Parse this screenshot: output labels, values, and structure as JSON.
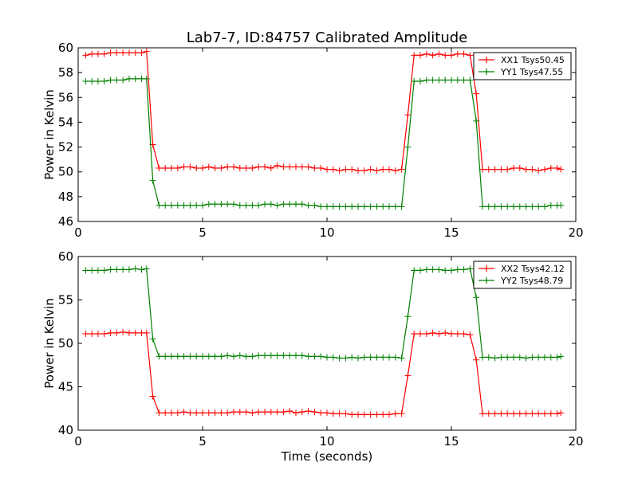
{
  "title": "Lab7-7, ID:84757 Calibrated Amplitude",
  "colors": {
    "red": "#ff0000",
    "green": "#008000"
  },
  "chart_data": [
    {
      "type": "line",
      "title": "Lab7-7, ID:84757 Calibrated Amplitude",
      "xlabel": "",
      "ylabel": "Power in Kelvin",
      "xlim": [
        0,
        20
      ],
      "ylim": [
        46,
        60
      ],
      "xticks": [
        0,
        5,
        10,
        15,
        20
      ],
      "yticks": [
        46,
        48,
        50,
        52,
        54,
        56,
        58,
        60
      ],
      "legend": "top-right",
      "x": [
        0.3,
        0.55,
        0.8,
        1.05,
        1.3,
        1.55,
        1.8,
        2.05,
        2.3,
        2.55,
        2.75,
        3.0,
        3.25,
        3.5,
        3.75,
        4.0,
        4.25,
        4.5,
        4.75,
        5.0,
        5.25,
        5.5,
        5.75,
        6.0,
        6.25,
        6.5,
        6.75,
        7.0,
        7.25,
        7.5,
        7.75,
        8.0,
        8.25,
        8.5,
        8.75,
        9.0,
        9.25,
        9.5,
        9.75,
        10.0,
        10.25,
        10.5,
        10.75,
        11.0,
        11.25,
        11.5,
        11.75,
        12.0,
        12.25,
        12.5,
        12.75,
        13.0,
        13.25,
        13.5,
        13.75,
        14.0,
        14.25,
        14.5,
        14.75,
        15.0,
        15.25,
        15.5,
        15.75,
        16.0,
        16.25,
        16.5,
        16.75,
        17.0,
        17.25,
        17.5,
        17.75,
        18.0,
        18.25,
        18.5,
        18.75,
        19.0,
        19.25,
        19.4
      ],
      "series": [
        {
          "name": "XX1 Tsys50.45",
          "color": "#ff0000",
          "values": [
            59.4,
            59.5,
            59.5,
            59.5,
            59.6,
            59.6,
            59.6,
            59.6,
            59.6,
            59.6,
            59.7,
            52.2,
            50.3,
            50.3,
            50.3,
            50.3,
            50.4,
            50.4,
            50.3,
            50.3,
            50.4,
            50.3,
            50.3,
            50.4,
            50.4,
            50.3,
            50.3,
            50.3,
            50.4,
            50.4,
            50.3,
            50.5,
            50.4,
            50.4,
            50.4,
            50.4,
            50.4,
            50.3,
            50.3,
            50.2,
            50.2,
            50.1,
            50.2,
            50.2,
            50.1,
            50.1,
            50.2,
            50.1,
            50.2,
            50.2,
            50.1,
            50.2,
            54.6,
            59.4,
            59.4,
            59.5,
            59.4,
            59.5,
            59.4,
            59.4,
            59.5,
            59.5,
            59.4,
            56.3,
            50.2,
            50.2,
            50.2,
            50.2,
            50.2,
            50.3,
            50.3,
            50.2,
            50.2,
            50.1,
            50.2,
            50.3,
            50.3,
            50.2
          ]
        },
        {
          "name": "YY1 Tsys47.55",
          "color": "#008000",
          "values": [
            57.3,
            57.3,
            57.3,
            57.3,
            57.4,
            57.4,
            57.4,
            57.5,
            57.5,
            57.5,
            57.5,
            49.3,
            47.3,
            47.3,
            47.3,
            47.3,
            47.3,
            47.3,
            47.3,
            47.3,
            47.4,
            47.4,
            47.4,
            47.4,
            47.4,
            47.3,
            47.3,
            47.3,
            47.3,
            47.4,
            47.4,
            47.3,
            47.4,
            47.4,
            47.4,
            47.4,
            47.3,
            47.3,
            47.2,
            47.2,
            47.2,
            47.2,
            47.2,
            47.2,
            47.2,
            47.2,
            47.2,
            47.2,
            47.2,
            47.2,
            47.2,
            47.2,
            52.0,
            57.3,
            57.3,
            57.4,
            57.4,
            57.4,
            57.4,
            57.4,
            57.4,
            57.4,
            57.4,
            54.1,
            47.2,
            47.2,
            47.2,
            47.2,
            47.2,
            47.2,
            47.2,
            47.2,
            47.2,
            47.2,
            47.2,
            47.3,
            47.3,
            47.3
          ]
        }
      ]
    },
    {
      "type": "line",
      "title": "",
      "xlabel": "Time (seconds)",
      "ylabel": "Power in Kelvin",
      "xlim": [
        0,
        20
      ],
      "ylim": [
        40,
        60
      ],
      "xticks": [
        0,
        5,
        10,
        15,
        20
      ],
      "yticks": [
        40,
        45,
        50,
        55,
        60
      ],
      "legend": "top-right",
      "x": [
        0.3,
        0.55,
        0.8,
        1.05,
        1.3,
        1.55,
        1.8,
        2.05,
        2.3,
        2.55,
        2.75,
        3.0,
        3.25,
        3.5,
        3.75,
        4.0,
        4.25,
        4.5,
        4.75,
        5.0,
        5.25,
        5.5,
        5.75,
        6.0,
        6.25,
        6.5,
        6.75,
        7.0,
        7.25,
        7.5,
        7.75,
        8.0,
        8.25,
        8.5,
        8.75,
        9.0,
        9.25,
        9.5,
        9.75,
        10.0,
        10.25,
        10.5,
        10.75,
        11.0,
        11.25,
        11.5,
        11.75,
        12.0,
        12.25,
        12.5,
        12.75,
        13.0,
        13.25,
        13.5,
        13.75,
        14.0,
        14.25,
        14.5,
        14.75,
        15.0,
        15.25,
        15.5,
        15.75,
        16.0,
        16.25,
        16.5,
        16.75,
        17.0,
        17.25,
        17.5,
        17.75,
        18.0,
        18.25,
        18.5,
        18.75,
        19.0,
        19.25,
        19.4
      ],
      "series": [
        {
          "name": "XX2 Tsys42.12",
          "color": "#ff0000",
          "values": [
            51.1,
            51.1,
            51.1,
            51.1,
            51.2,
            51.2,
            51.3,
            51.2,
            51.2,
            51.2,
            51.2,
            43.9,
            42.0,
            42.0,
            42.0,
            42.0,
            42.1,
            42.0,
            42.0,
            42.0,
            42.0,
            42.0,
            42.0,
            42.0,
            42.1,
            42.1,
            42.1,
            42.0,
            42.1,
            42.1,
            42.1,
            42.1,
            42.1,
            42.2,
            42.0,
            42.1,
            42.2,
            42.1,
            42.0,
            42.0,
            41.9,
            41.9,
            41.9,
            41.8,
            41.8,
            41.8,
            41.8,
            41.8,
            41.8,
            41.8,
            41.9,
            41.9,
            46.3,
            51.1,
            51.1,
            51.1,
            51.2,
            51.1,
            51.2,
            51.1,
            51.1,
            51.1,
            51.0,
            48.1,
            41.9,
            41.9,
            41.9,
            41.9,
            41.9,
            41.9,
            41.9,
            41.9,
            41.9,
            41.9,
            41.9,
            41.9,
            41.9,
            42.0
          ]
        },
        {
          "name": "YY2 Tsys48.79",
          "color": "#008000",
          "values": [
            58.4,
            58.4,
            58.4,
            58.4,
            58.5,
            58.5,
            58.5,
            58.5,
            58.6,
            58.5,
            58.6,
            50.5,
            48.5,
            48.5,
            48.5,
            48.5,
            48.5,
            48.5,
            48.5,
            48.5,
            48.5,
            48.5,
            48.5,
            48.6,
            48.5,
            48.6,
            48.5,
            48.5,
            48.6,
            48.6,
            48.6,
            48.6,
            48.6,
            48.6,
            48.6,
            48.6,
            48.5,
            48.5,
            48.5,
            48.4,
            48.4,
            48.3,
            48.3,
            48.4,
            48.3,
            48.4,
            48.4,
            48.4,
            48.4,
            48.4,
            48.4,
            48.3,
            53.1,
            58.4,
            58.4,
            58.5,
            58.5,
            58.5,
            58.4,
            58.4,
            58.5,
            58.5,
            58.6,
            55.3,
            48.4,
            48.4,
            48.3,
            48.4,
            48.4,
            48.4,
            48.4,
            48.3,
            48.4,
            48.4,
            48.4,
            48.4,
            48.4,
            48.5
          ]
        }
      ]
    }
  ]
}
